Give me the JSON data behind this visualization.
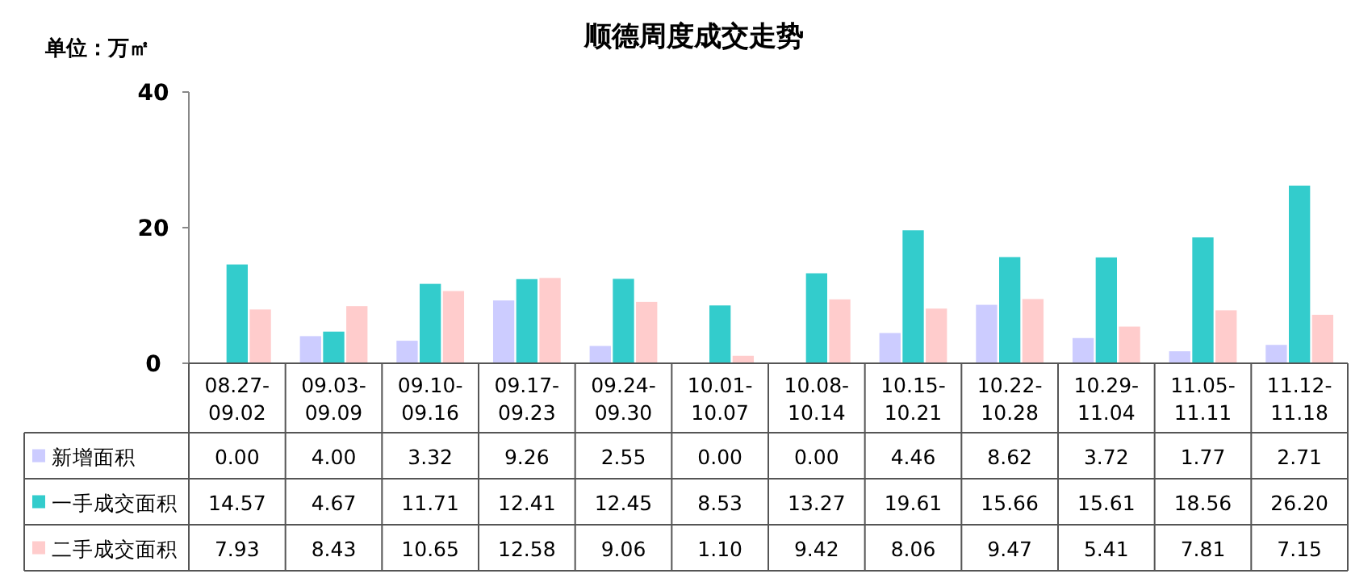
{
  "chart_data": {
    "type": "bar",
    "title": "顺德周度成交走势",
    "annotations": [
      "单位：万㎡"
    ],
    "categories": [
      "08.27-09.02",
      "09.03-09.09",
      "09.10-09.16",
      "09.17-09.23",
      "09.24-09.30",
      "10.01-10.07",
      "10.08-10.14",
      "10.15-10.21",
      "10.22-10.28",
      "10.29-11.04",
      "11.05-11.11",
      "11.12-11.18"
    ],
    "series": [
      {
        "name": "新增面积",
        "color": "#ccccff",
        "values": [
          0.0,
          4.0,
          3.32,
          9.26,
          2.55,
          0.0,
          0.0,
          4.46,
          8.62,
          3.72,
          1.77,
          2.71
        ],
        "value_labels": [
          "0.00",
          "4.00",
          "3.32",
          "9.26",
          "2.55",
          "0.00",
          "0.00",
          "4.46",
          "8.62",
          "3.72",
          "1.77",
          "2.71"
        ]
      },
      {
        "name": "一手成交面积",
        "color": "#33cccc",
        "values": [
          14.57,
          4.67,
          11.71,
          12.41,
          12.45,
          8.53,
          13.27,
          19.61,
          15.66,
          15.61,
          18.56,
          26.2
        ],
        "value_labels": [
          "14.57",
          "4.67",
          "11.71",
          "12.41",
          "12.45",
          "8.53",
          "13.27",
          "19.61",
          "15.66",
          "15.61",
          "18.56",
          "26.20"
        ]
      },
      {
        "name": "二手成交面积",
        "color": "#ffcccc",
        "values": [
          7.93,
          8.43,
          10.65,
          12.58,
          9.06,
          1.1,
          9.42,
          8.06,
          9.47,
          5.41,
          7.81,
          7.15
        ],
        "value_labels": [
          "7.93",
          "8.43",
          "10.65",
          "12.58",
          "9.06",
          "1.10",
          "9.42",
          "8.06",
          "9.47",
          "5.41",
          "7.81",
          "7.15"
        ]
      }
    ],
    "ylim": [
      0,
      40
    ],
    "yticks": [
      0,
      20,
      40
    ],
    "grid": false,
    "legend": "bottom"
  }
}
